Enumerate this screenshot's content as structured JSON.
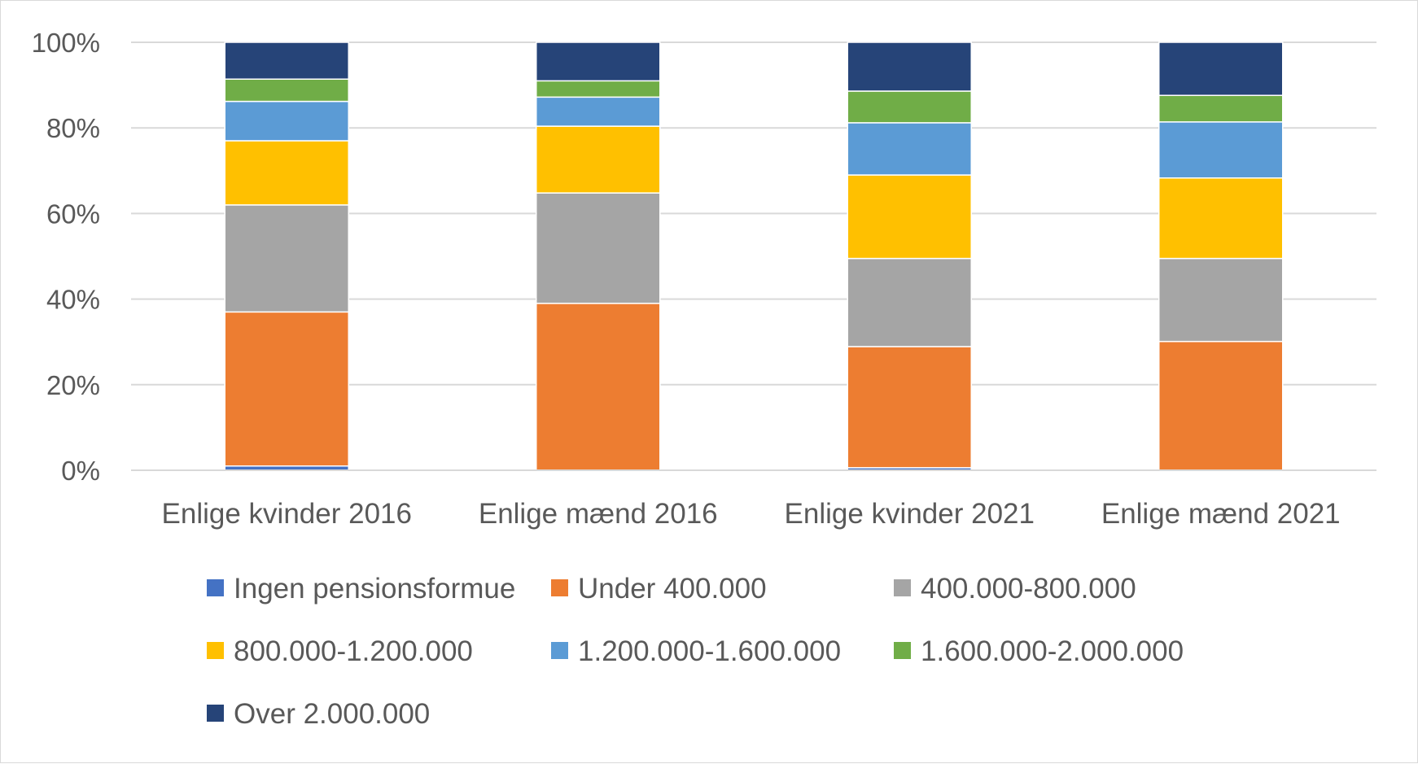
{
  "chart_data": {
    "type": "bar",
    "stacked": true,
    "percent": true,
    "categories": [
      "Enlige kvinder 2016",
      "Enlige mænd 2016",
      "Enlige kvinder 2021",
      "Enlige mænd 2021"
    ],
    "series": [
      {
        "name": "Ingen pensionsformue",
        "color": "#4472c4",
        "values": [
          1.0,
          0.0,
          0.6,
          0.0
        ]
      },
      {
        "name": "Under 400.000",
        "color": "#ed7d31",
        "values": [
          36.0,
          39.0,
          28.3,
          30.1
        ]
      },
      {
        "name": "400.000-800.000",
        "color": "#a5a5a5",
        "values": [
          25.0,
          25.8,
          20.6,
          19.4
        ]
      },
      {
        "name": "800.000-1.200.000",
        "color": "#ffc000",
        "values": [
          15.0,
          15.6,
          19.5,
          18.8
        ]
      },
      {
        "name": "1.200.000-1.600.000",
        "color": "#5b9bd5",
        "values": [
          9.2,
          6.8,
          12.2,
          13.1
        ]
      },
      {
        "name": "1.600.000-2.000.000",
        "color": "#70ad47",
        "values": [
          5.2,
          3.8,
          7.4,
          6.2
        ]
      },
      {
        "name": "Over 2.000.000",
        "color": "#264478",
        "values": [
          8.6,
          9.0,
          11.4,
          12.4
        ]
      }
    ],
    "yticks": [
      "0%",
      "20%",
      "40%",
      "60%",
      "80%",
      "100%"
    ],
    "ylim": [
      0,
      100
    ],
    "grid": true,
    "legend_position": "bottom"
  }
}
